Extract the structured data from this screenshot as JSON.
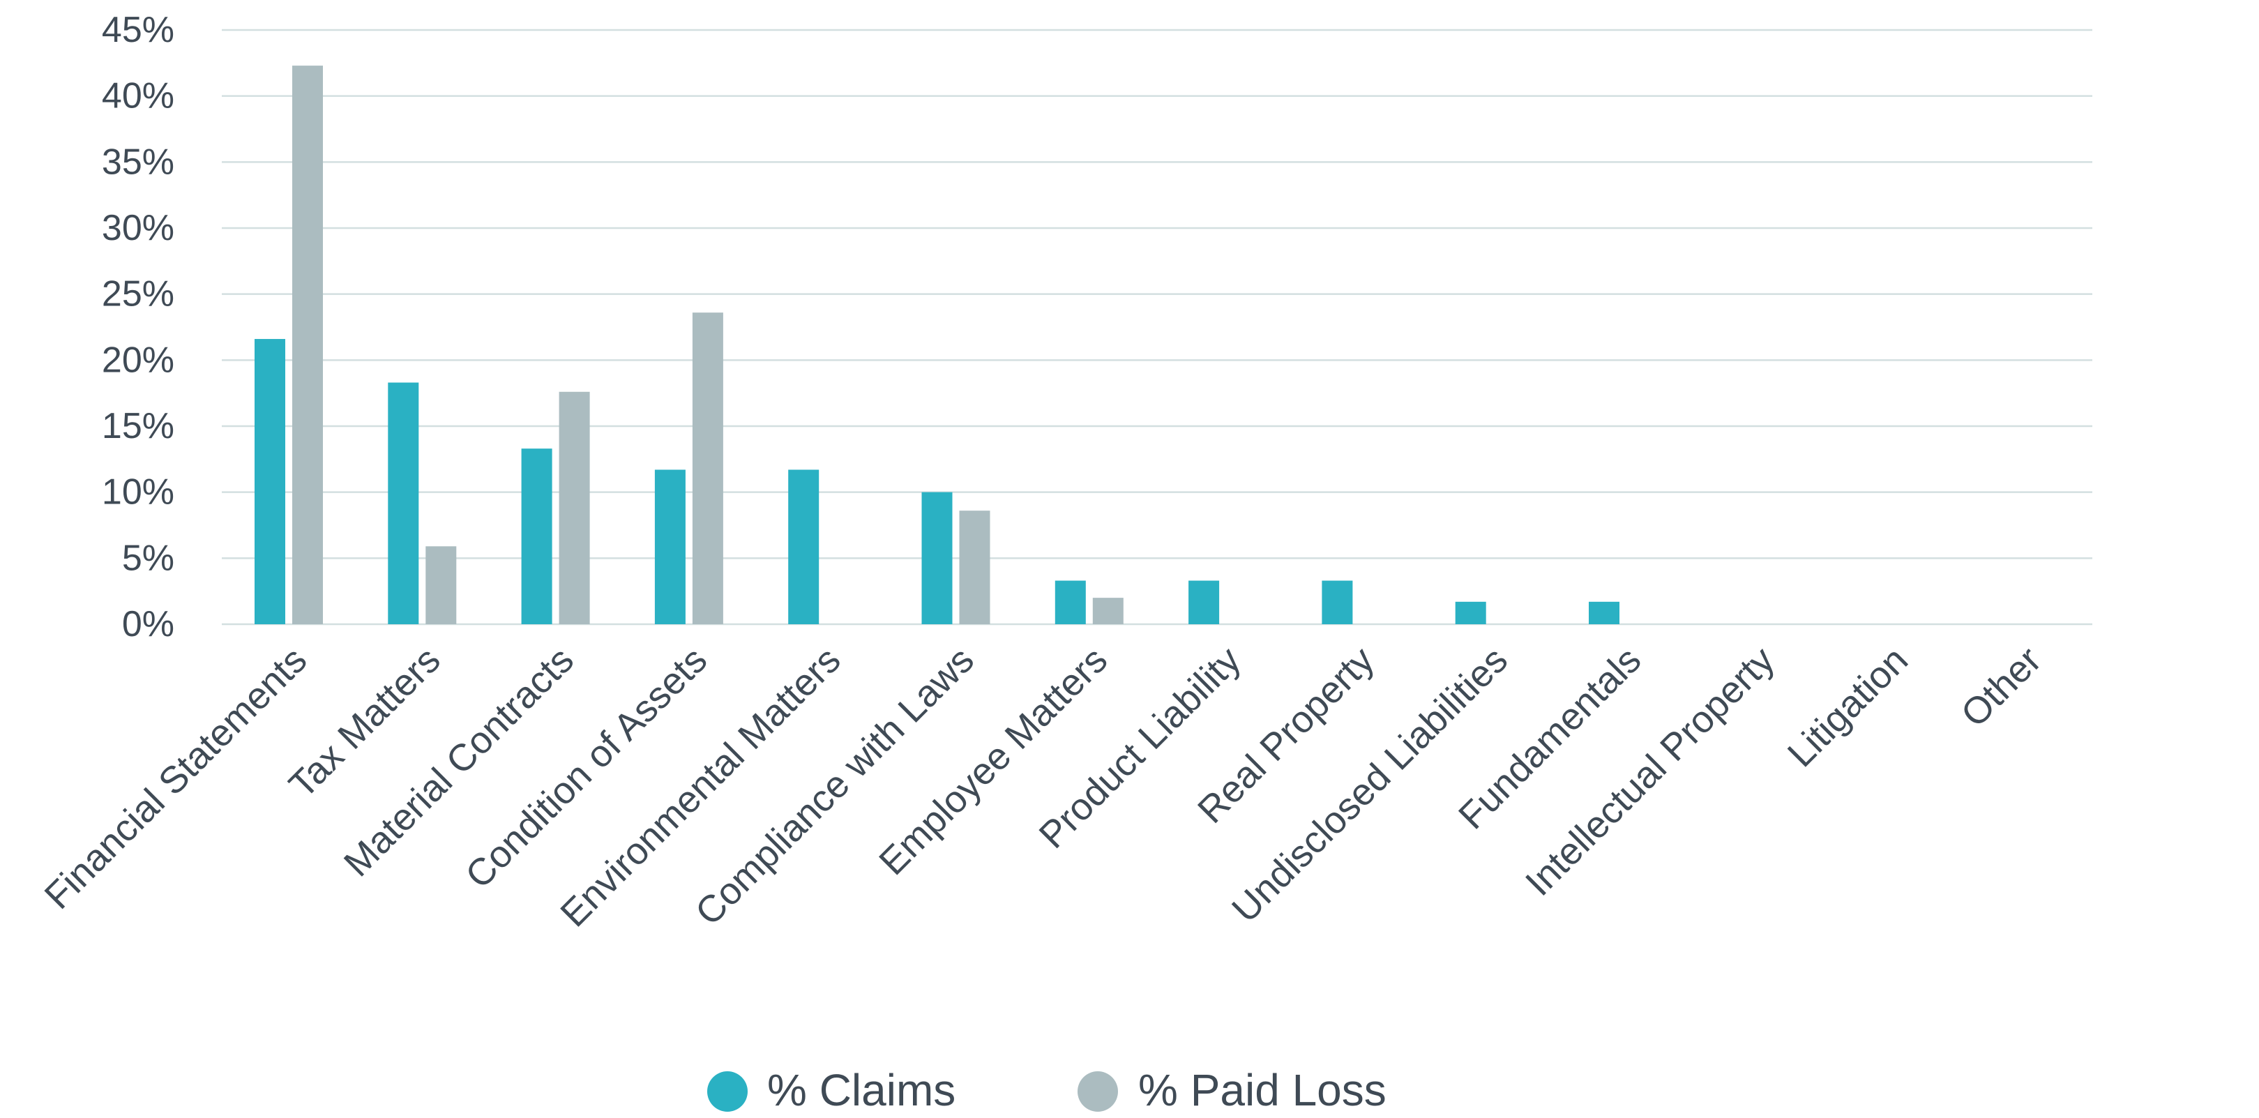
{
  "chart_data": {
    "type": "bar",
    "categories": [
      "Financial Statements",
      "Tax Matters",
      "Material Contracts",
      "Condition of Assets",
      "Environmental Matters",
      "Compliance with Laws",
      "Employee Matters",
      "Product Liability",
      "Real Property",
      "Undisclosed Liabilities",
      "Fundamentals",
      "Intellectual Property",
      "Litigation",
      "Other"
    ],
    "series": [
      {
        "name": "% Claims",
        "color": "#2AB1C3",
        "values": [
          21.6,
          18.3,
          13.3,
          11.7,
          11.7,
          10.0,
          3.3,
          3.3,
          3.3,
          1.7,
          1.7,
          0,
          0,
          0
        ]
      },
      {
        "name": "% Paid Loss",
        "color": "#ABBCC0",
        "values": [
          42.3,
          5.9,
          17.6,
          23.6,
          0,
          8.6,
          2.0,
          0,
          0,
          0,
          0,
          0,
          0,
          0
        ]
      }
    ],
    "ylim": [
      0,
      45
    ],
    "yticks": [
      0,
      5,
      10,
      15,
      20,
      25,
      30,
      35,
      40,
      45
    ],
    "ytick_labels": [
      "0%",
      "5%",
      "10%",
      "15%",
      "20%",
      "25%",
      "30%",
      "35%",
      "40%",
      "45%"
    ],
    "title": "",
    "xlabel": "",
    "ylabel": "",
    "grid": true,
    "legend_position": "bottom-center",
    "gridline_color": "#D3DFE0",
    "text_color": "#3F4A55"
  }
}
